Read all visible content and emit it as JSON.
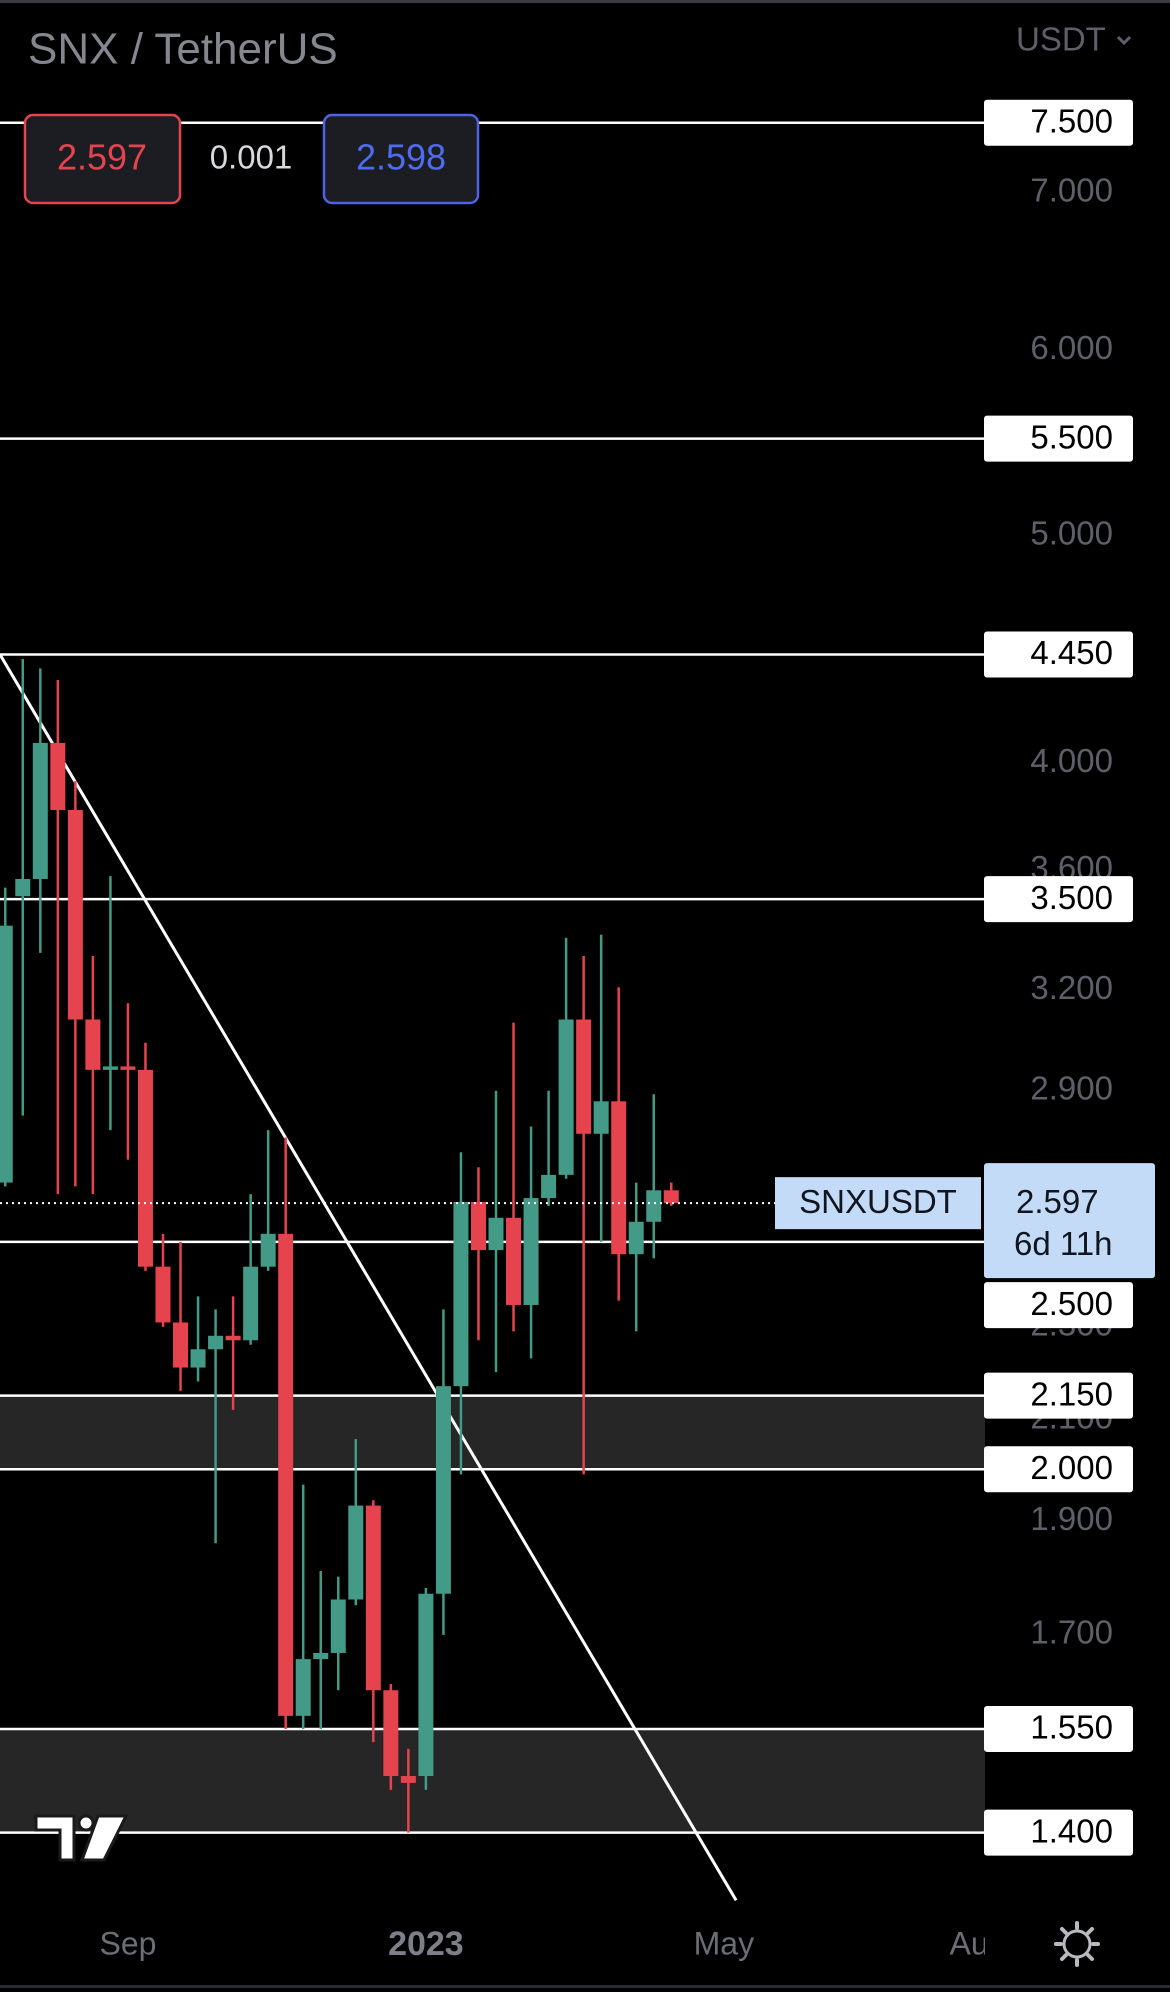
{
  "chart_data": {
    "type": "candlestick",
    "title": "SNX / TetherUS",
    "currency": "USDT",
    "bid": 2.597,
    "spread": 0.001,
    "ask": 2.598,
    "symbol": "SNXUSDT",
    "countdown": "6d 11h",
    "log_scale": true,
    "up_color": "#439a86",
    "down_color": "#e5434e",
    "xlim": [
      -0.3,
      55.9
    ],
    "ylim": [
      1.304,
      8.46
    ],
    "xticks": [
      {
        "value": 7,
        "label": "Sep"
      },
      {
        "value": 24,
        "label": "2023"
      },
      {
        "value": 41,
        "label": "May"
      },
      {
        "value": 55.5,
        "label": "Aug"
      }
    ],
    "yticks": [
      {
        "value": 7,
        "label": "7.000"
      },
      {
        "value": 6,
        "label": "6.000"
      },
      {
        "value": 5,
        "label": "5.000"
      },
      {
        "value": 4,
        "label": "4.000"
      },
      {
        "value": 3.6,
        "label": "3.600"
      },
      {
        "value": 3.2,
        "label": "3.200"
      },
      {
        "value": 2.9,
        "label": "2.900"
      },
      {
        "value": 2.3,
        "label": "2.300"
      },
      {
        "value": 2.1,
        "label": "2.100"
      },
      {
        "value": 1.9,
        "label": "1.900"
      },
      {
        "value": 1.7,
        "label": "1.700"
      }
    ],
    "levels": [
      {
        "value": 7.5,
        "label": "7.500"
      },
      {
        "value": 5.5,
        "label": "5.500"
      },
      {
        "value": 4.45,
        "label": "4.450"
      },
      {
        "value": 3.5,
        "label": "3.500"
      },
      {
        "value": 2.5,
        "label": "2.500"
      },
      {
        "value": 2.15,
        "label": "2.150"
      },
      {
        "value": 2,
        "label": "2.000"
      },
      {
        "value": 1.55,
        "label": "1.550"
      },
      {
        "value": 1.4,
        "label": "1.400"
      }
    ],
    "zones": [
      {
        "from": 2.0,
        "to": 2.15
      },
      {
        "from": 1.4,
        "to": 1.55
      }
    ],
    "trendline": {
      "x": [
        -0.3,
        41.7
      ],
      "y": [
        4.45,
        1.31
      ]
    },
    "candles": [
      {
        "x": 0,
        "open": 2.65,
        "high": 3.54,
        "low": 2.64,
        "close": 3.41
      },
      {
        "x": 1,
        "open": 3.51,
        "high": 4.43,
        "low": 2.83,
        "close": 3.57
      },
      {
        "x": 2,
        "open": 3.57,
        "high": 4.39,
        "low": 3.32,
        "close": 4.08
      },
      {
        "x": 3,
        "open": 4.08,
        "high": 4.34,
        "low": 2.62,
        "close": 3.82
      },
      {
        "x": 4,
        "open": 3.82,
        "high": 3.93,
        "low": 2.64,
        "close": 3.11
      },
      {
        "x": 5,
        "open": 3.11,
        "high": 3.31,
        "low": 2.62,
        "close": 2.96
      },
      {
        "x": 6,
        "open": 2.96,
        "high": 3.58,
        "low": 2.79,
        "close": 2.97
      },
      {
        "x": 7,
        "open": 2.97,
        "high": 3.16,
        "low": 2.71,
        "close": 2.96
      },
      {
        "x": 8,
        "open": 2.96,
        "high": 3.04,
        "low": 2.43,
        "close": 2.44
      },
      {
        "x": 9,
        "open": 2.44,
        "high": 2.52,
        "low": 2.3,
        "close": 2.31
      },
      {
        "x": 10,
        "open": 2.31,
        "high": 2.5,
        "low": 2.16,
        "close": 2.21
      },
      {
        "x": 11,
        "open": 2.21,
        "high": 2.37,
        "low": 2.18,
        "close": 2.25
      },
      {
        "x": 12,
        "open": 2.25,
        "high": 2.34,
        "low": 1.86,
        "close": 2.28
      },
      {
        "x": 13,
        "open": 2.28,
        "high": 2.37,
        "low": 2.12,
        "close": 2.27
      },
      {
        "x": 14,
        "open": 2.27,
        "high": 2.62,
        "low": 2.26,
        "close": 2.44
      },
      {
        "x": 15,
        "open": 2.44,
        "high": 2.79,
        "low": 2.43,
        "close": 2.52
      },
      {
        "x": 16,
        "open": 2.52,
        "high": 2.77,
        "low": 1.55,
        "close": 1.57
      },
      {
        "x": 17,
        "open": 1.57,
        "high": 1.97,
        "low": 1.55,
        "close": 1.66
      },
      {
        "x": 18,
        "open": 1.66,
        "high": 1.81,
        "low": 1.55,
        "close": 1.67
      },
      {
        "x": 19,
        "open": 1.67,
        "high": 1.8,
        "low": 1.61,
        "close": 1.76
      },
      {
        "x": 20,
        "open": 1.76,
        "high": 2.06,
        "low": 1.75,
        "close": 1.93
      },
      {
        "x": 21,
        "open": 1.93,
        "high": 1.94,
        "low": 1.53,
        "close": 1.61
      },
      {
        "x": 22,
        "open": 1.61,
        "high": 1.62,
        "low": 1.46,
        "close": 1.48
      },
      {
        "x": 23,
        "open": 1.48,
        "high": 1.52,
        "low": 1.4,
        "close": 1.47
      },
      {
        "x": 24,
        "open": 1.48,
        "high": 1.78,
        "low": 1.46,
        "close": 1.77
      },
      {
        "x": 25,
        "open": 1.77,
        "high": 2.34,
        "low": 1.7,
        "close": 2.17
      },
      {
        "x": 26,
        "open": 2.17,
        "high": 2.73,
        "low": 1.99,
        "close": 2.6
      },
      {
        "x": 27,
        "open": 2.6,
        "high": 2.69,
        "low": 2.27,
        "close": 2.48
      },
      {
        "x": 28,
        "open": 2.48,
        "high": 2.9,
        "low": 2.2,
        "close": 2.56
      },
      {
        "x": 29,
        "open": 2.56,
        "high": 3.1,
        "low": 2.29,
        "close": 2.35
      },
      {
        "x": 30,
        "open": 2.35,
        "high": 2.8,
        "low": 2.23,
        "close": 2.61
      },
      {
        "x": 31,
        "open": 2.61,
        "high": 2.9,
        "low": 2.59,
        "close": 2.67
      },
      {
        "x": 32,
        "open": 2.67,
        "high": 3.37,
        "low": 2.66,
        "close": 3.11
      },
      {
        "x": 33,
        "open": 3.11,
        "high": 3.31,
        "low": 1.99,
        "close": 2.78
      },
      {
        "x": 34,
        "open": 2.78,
        "high": 3.38,
        "low": 2.5,
        "close": 2.87
      },
      {
        "x": 35,
        "open": 2.87,
        "high": 3.21,
        "low": 2.36,
        "close": 2.47
      },
      {
        "x": 36,
        "open": 2.47,
        "high": 2.65,
        "low": 2.29,
        "close": 2.55
      },
      {
        "x": 37,
        "open": 2.55,
        "high": 2.89,
        "low": 2.46,
        "close": 2.63
      },
      {
        "x": 38,
        "open": 2.63,
        "high": 2.65,
        "low": 2.59,
        "close": 2.597
      }
    ]
  }
}
